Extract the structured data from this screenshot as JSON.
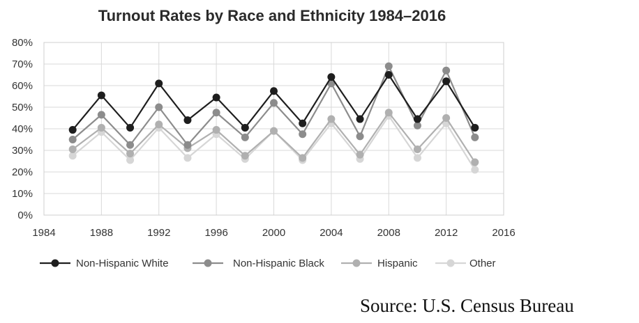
{
  "chart_data": {
    "type": "line",
    "title": "Turnout Rates by Race and Ethnicity 1984–2016",
    "xlabel": "",
    "ylabel": "",
    "xlim": [
      1984,
      2016
    ],
    "ylim": [
      0,
      80
    ],
    "x_ticks": [
      "1984",
      "1988",
      "1992",
      "1996",
      "2000",
      "2004",
      "2008",
      "2012",
      "2016"
    ],
    "y_ticks": [
      "0%",
      "10%",
      "20%",
      "30%",
      "40%",
      "50%",
      "60%",
      "70%",
      "80%"
    ],
    "grid": true,
    "legend_position": "bottom",
    "x": [
      1986,
      1988,
      1990,
      1992,
      1994,
      1996,
      1998,
      2000,
      2002,
      2004,
      2006,
      2008,
      2010,
      2012,
      2014
    ],
    "series": [
      {
        "name": "Non-Hispanic White",
        "color": "#1e1e1e",
        "values": [
          39.5,
          55.5,
          40.5,
          61.0,
          44.0,
          54.5,
          40.5,
          57.5,
          42.5,
          64.0,
          44.5,
          65.0,
          44.5,
          62.0,
          40.5
        ]
      },
      {
        "name": "Non-Hispanic Black",
        "color": "#8c8c8c",
        "values": [
          35.0,
          46.5,
          32.5,
          50.0,
          32.5,
          47.5,
          36.0,
          52.0,
          37.5,
          61.0,
          36.5,
          69.0,
          41.5,
          67.0,
          36.0
        ]
      },
      {
        "name": "Hispanic",
        "color": "#b0b0b0",
        "values": [
          30.5,
          40.5,
          28.5,
          42.0,
          31.0,
          39.5,
          27.5,
          39.0,
          26.5,
          44.5,
          28.0,
          47.5,
          30.5,
          45.0,
          24.5
        ]
      },
      {
        "name": "Other",
        "color": "#d6d6d6",
        "values": [
          27.5,
          38.5,
          25.5,
          40.5,
          26.5,
          37.5,
          26.0,
          39.0,
          25.5,
          42.5,
          26.0,
          46.0,
          26.5,
          42.5,
          21.0
        ]
      }
    ]
  },
  "source": "Source: U.S. Census Bureau"
}
